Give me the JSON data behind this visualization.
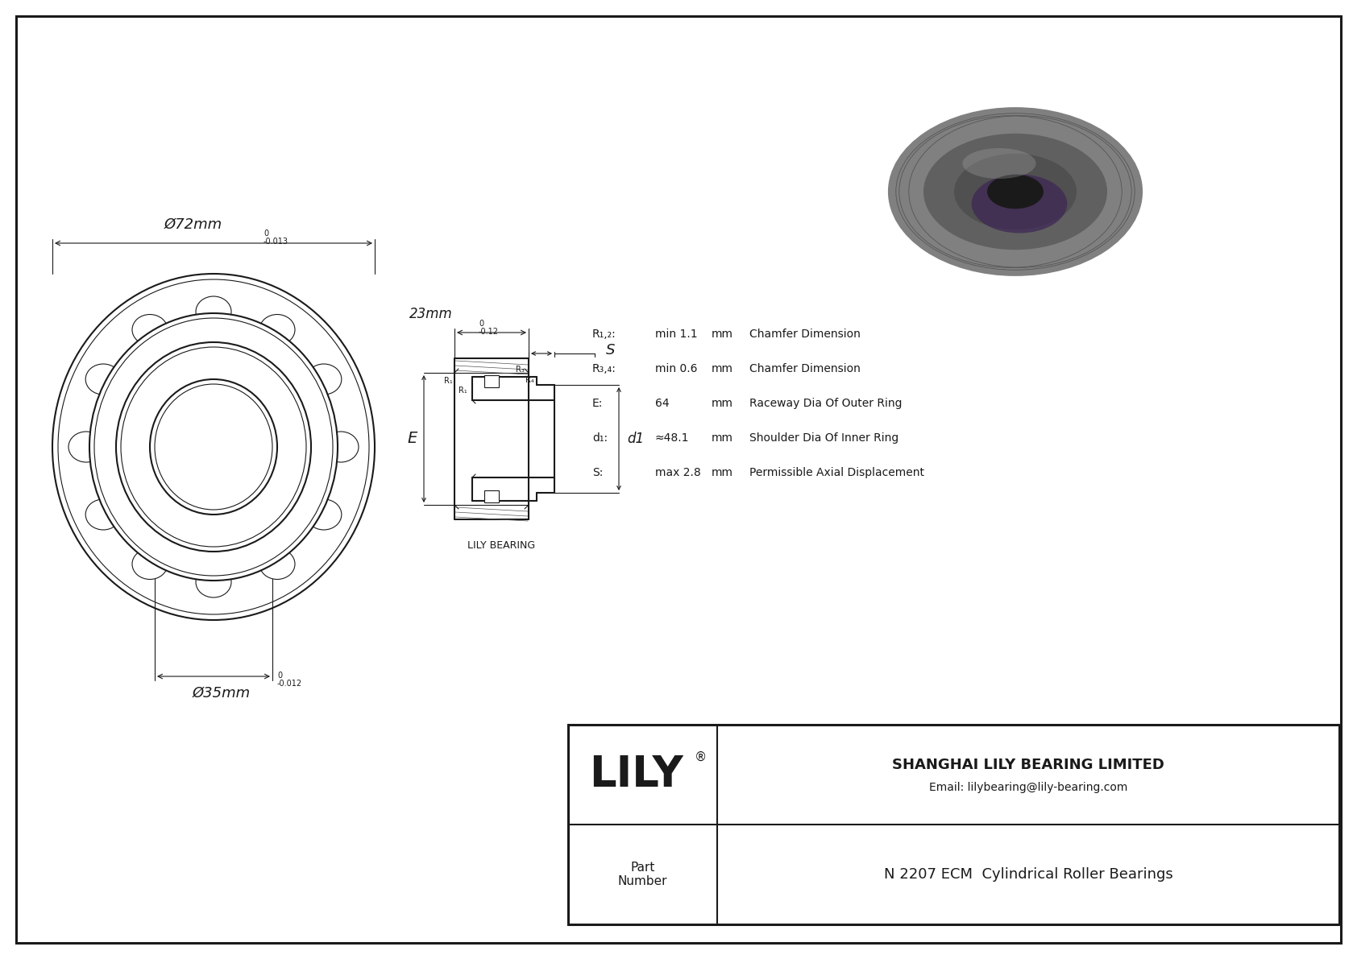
{
  "bg_color": "#ffffff",
  "line_color": "#1a1a1a",
  "company": "SHANGHAI LILY BEARING LIMITED",
  "email": "Email: lilybearing@lily-bearing.com",
  "lily_text": "LILY",
  "part_label": "Part\nNumber",
  "part_number": "N 2207 ECM  Cylindrical Roller Bearings",
  "dim_od": "Ø72mm",
  "dim_od_tol": "-0.013",
  "dim_od_tol_upper": "0",
  "dim_id": "Ø35mm",
  "dim_id_tol": "-0.012",
  "dim_id_tol_upper": "0",
  "dim_width": "23mm",
  "dim_width_tol": "-0.12",
  "dim_width_tol_upper": "0",
  "label_E": "E",
  "label_d1": "d1",
  "label_S": "S",
  "label_R1": "R₁",
  "label_R3": "R₃",
  "label_R4": "R₄",
  "lily_bearing_label": "LILY BEARING",
  "specs": [
    [
      "R₁,₂:",
      "min 1.1",
      "mm",
      "Chamfer Dimension"
    ],
    [
      "R₃,₄:",
      "min 0.6",
      "mm",
      "Chamfer Dimension"
    ],
    [
      "E:",
      "64",
      "mm",
      "Raceway Dia Of Outer Ring"
    ],
    [
      "d₁:",
      "≈48.1",
      "mm",
      "Shoulder Dia Of Inner Ring"
    ],
    [
      "S:",
      "max 2.8",
      "mm",
      "Permissible Axial Displacement"
    ]
  ]
}
